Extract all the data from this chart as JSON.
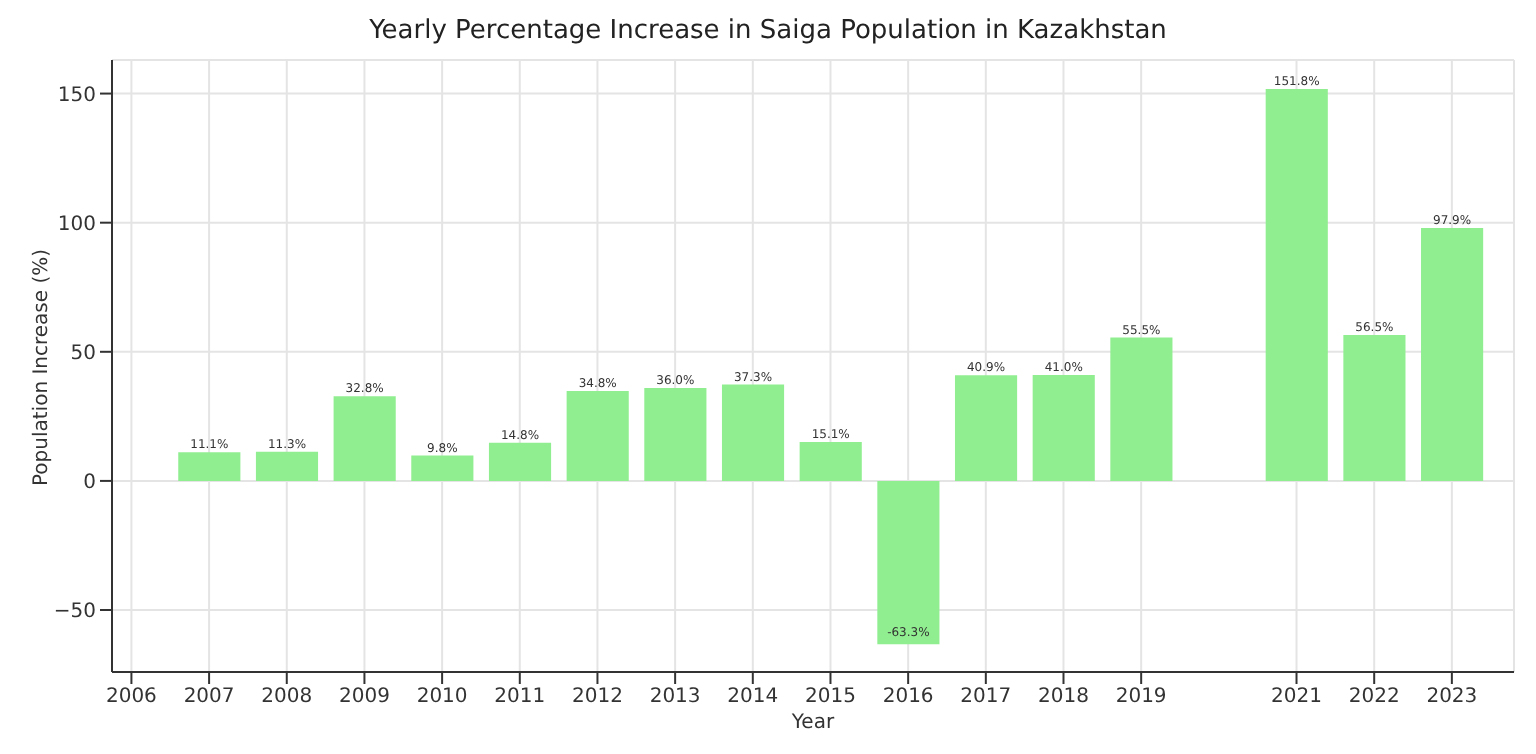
{
  "chart_data": {
    "type": "bar",
    "title": "Yearly Percentage Increase in Saiga Population in Kazakhstan",
    "xlabel": "Year",
    "ylabel": "Population Increase (%)",
    "x": [
      2007,
      2008,
      2009,
      2010,
      2011,
      2012,
      2013,
      2014,
      2015,
      2016,
      2017,
      2018,
      2019,
      2021,
      2022,
      2023
    ],
    "values": [
      11.1,
      11.3,
      32.8,
      9.8,
      14.8,
      34.8,
      36.0,
      37.3,
      15.1,
      -63.3,
      40.9,
      41.0,
      55.5,
      151.8,
      56.5,
      97.9
    ],
    "value_labels": [
      "11.1%",
      "11.3%",
      "32.8%",
      "9.8%",
      "14.8%",
      "34.8%",
      "36.0%",
      "37.3%",
      "15.1%",
      "-63.3%",
      "40.9%",
      "41.0%",
      "55.5%",
      "151.8%",
      "56.5%",
      "97.9%"
    ],
    "color": "#90ee90",
    "xlim": [
      2005.75,
      2023.8
    ],
    "xticks": [
      2006,
      2007,
      2008,
      2009,
      2010,
      2011,
      2012,
      2013,
      2014,
      2015,
      2016,
      2017,
      2018,
      2019,
      2021,
      2022,
      2023
    ],
    "ylim": [
      -74,
      163
    ],
    "yticks": [
      {
        "value": -50,
        "label": "−50"
      },
      0,
      50,
      100,
      150
    ],
    "grid": true
  }
}
